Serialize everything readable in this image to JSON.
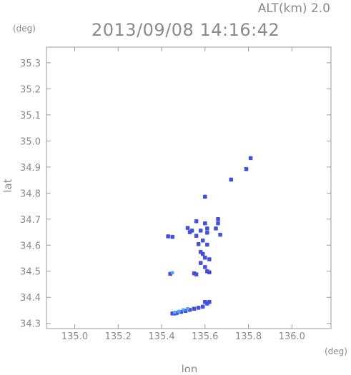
{
  "header": {
    "altitude_text": "ALT(km) 2.0",
    "timestamp_text": "2013/09/08 14:16:42"
  },
  "chart_data": {
    "type": "scatter",
    "title": "2013/09/08 14:16:42",
    "xlabel": "lon",
    "ylabel": "lat",
    "xunit": "(deg)",
    "yunit": "(deg)",
    "xlim": [
      134.87,
      136.18
    ],
    "ylim": [
      34.28,
      35.36
    ],
    "xticks": [
      135.0,
      135.2,
      135.4,
      135.6,
      135.8,
      136.0
    ],
    "xtick_labels": [
      "135.0",
      "135.2",
      "135.4",
      "135.6",
      "135.8",
      "136.0"
    ],
    "yticks": [
      34.3,
      34.4,
      34.5,
      34.6,
      34.7,
      34.8,
      34.9,
      35.0,
      35.1,
      35.2,
      35.3
    ],
    "ytick_labels": [
      "34.3",
      "34.4",
      "34.5",
      "34.6",
      "34.7",
      "34.8",
      "34.9",
      "35.0",
      "35.1",
      "35.2",
      "35.3"
    ],
    "grid": false,
    "colors": {
      "frame": "#9a9a9a",
      "text": "#8a8a8a",
      "echo_blue": "#3f4fe7",
      "echo_cyan": "#4ca8ff"
    },
    "points": [
      {
        "lon": 135.81,
        "lat": 34.934,
        "c": "blue"
      },
      {
        "lon": 135.79,
        "lat": 34.892,
        "c": "blue"
      },
      {
        "lon": 135.72,
        "lat": 34.852,
        "c": "blue"
      },
      {
        "lon": 135.6,
        "lat": 34.786,
        "c": "blue"
      },
      {
        "lon": 135.66,
        "lat": 34.7,
        "c": "blue"
      },
      {
        "lon": 135.56,
        "lat": 34.692,
        "c": "blue"
      },
      {
        "lon": 135.6,
        "lat": 34.684,
        "c": "blue"
      },
      {
        "lon": 135.66,
        "lat": 34.684,
        "c": "blue"
      },
      {
        "lon": 135.52,
        "lat": 34.666,
        "c": "blue"
      },
      {
        "lon": 135.54,
        "lat": 34.656,
        "c": "blue"
      },
      {
        "lon": 135.58,
        "lat": 34.656,
        "c": "blue"
      },
      {
        "lon": 135.61,
        "lat": 34.664,
        "c": "blue"
      },
      {
        "lon": 135.65,
        "lat": 34.664,
        "c": "blue"
      },
      {
        "lon": 135.67,
        "lat": 34.64,
        "c": "blue"
      },
      {
        "lon": 135.53,
        "lat": 34.65,
        "c": "blue"
      },
      {
        "lon": 135.45,
        "lat": 34.632,
        "c": "blue"
      },
      {
        "lon": 135.43,
        "lat": 34.634,
        "c": "blue"
      },
      {
        "lon": 135.56,
        "lat": 34.636,
        "c": "blue"
      },
      {
        "lon": 135.61,
        "lat": 34.648,
        "c": "blue"
      },
      {
        "lon": 135.59,
        "lat": 34.618,
        "c": "blue"
      },
      {
        "lon": 135.61,
        "lat": 34.602,
        "c": "blue"
      },
      {
        "lon": 135.57,
        "lat": 34.604,
        "c": "blue"
      },
      {
        "lon": 135.58,
        "lat": 34.574,
        "c": "blue"
      },
      {
        "lon": 135.59,
        "lat": 34.566,
        "c": "blue"
      },
      {
        "lon": 135.6,
        "lat": 34.552,
        "c": "blue"
      },
      {
        "lon": 135.62,
        "lat": 34.546,
        "c": "blue"
      },
      {
        "lon": 135.58,
        "lat": 34.532,
        "c": "blue"
      },
      {
        "lon": 135.6,
        "lat": 34.516,
        "c": "blue"
      },
      {
        "lon": 135.61,
        "lat": 34.5,
        "c": "blue"
      },
      {
        "lon": 135.62,
        "lat": 34.496,
        "c": "blue"
      },
      {
        "lon": 135.55,
        "lat": 34.492,
        "c": "blue"
      },
      {
        "lon": 135.56,
        "lat": 34.488,
        "c": "blue"
      },
      {
        "lon": 135.44,
        "lat": 34.49,
        "c": "blue"
      },
      {
        "lon": 135.45,
        "lat": 34.494,
        "c": "cyan"
      },
      {
        "lon": 135.6,
        "lat": 34.382,
        "c": "blue"
      },
      {
        "lon": 135.62,
        "lat": 34.382,
        "c": "blue"
      },
      {
        "lon": 135.61,
        "lat": 34.376,
        "c": "blue"
      },
      {
        "lon": 135.59,
        "lat": 34.364,
        "c": "blue"
      },
      {
        "lon": 135.57,
        "lat": 34.36,
        "c": "blue"
      },
      {
        "lon": 135.55,
        "lat": 34.356,
        "c": "blue"
      },
      {
        "lon": 135.53,
        "lat": 34.352,
        "c": "blue"
      },
      {
        "lon": 135.51,
        "lat": 34.348,
        "c": "blue"
      },
      {
        "lon": 135.49,
        "lat": 34.344,
        "c": "blue"
      },
      {
        "lon": 135.47,
        "lat": 34.34,
        "c": "blue"
      },
      {
        "lon": 135.46,
        "lat": 34.338,
        "c": "blue"
      },
      {
        "lon": 135.45,
        "lat": 34.338,
        "c": "blue"
      },
      {
        "lon": 135.48,
        "lat": 34.346,
        "c": "cyan"
      },
      {
        "lon": 135.5,
        "lat": 34.352,
        "c": "cyan"
      },
      {
        "lon": 135.52,
        "lat": 34.356,
        "c": "cyan"
      },
      {
        "lon": 135.46,
        "lat": 34.342,
        "c": "cyan"
      }
    ]
  }
}
